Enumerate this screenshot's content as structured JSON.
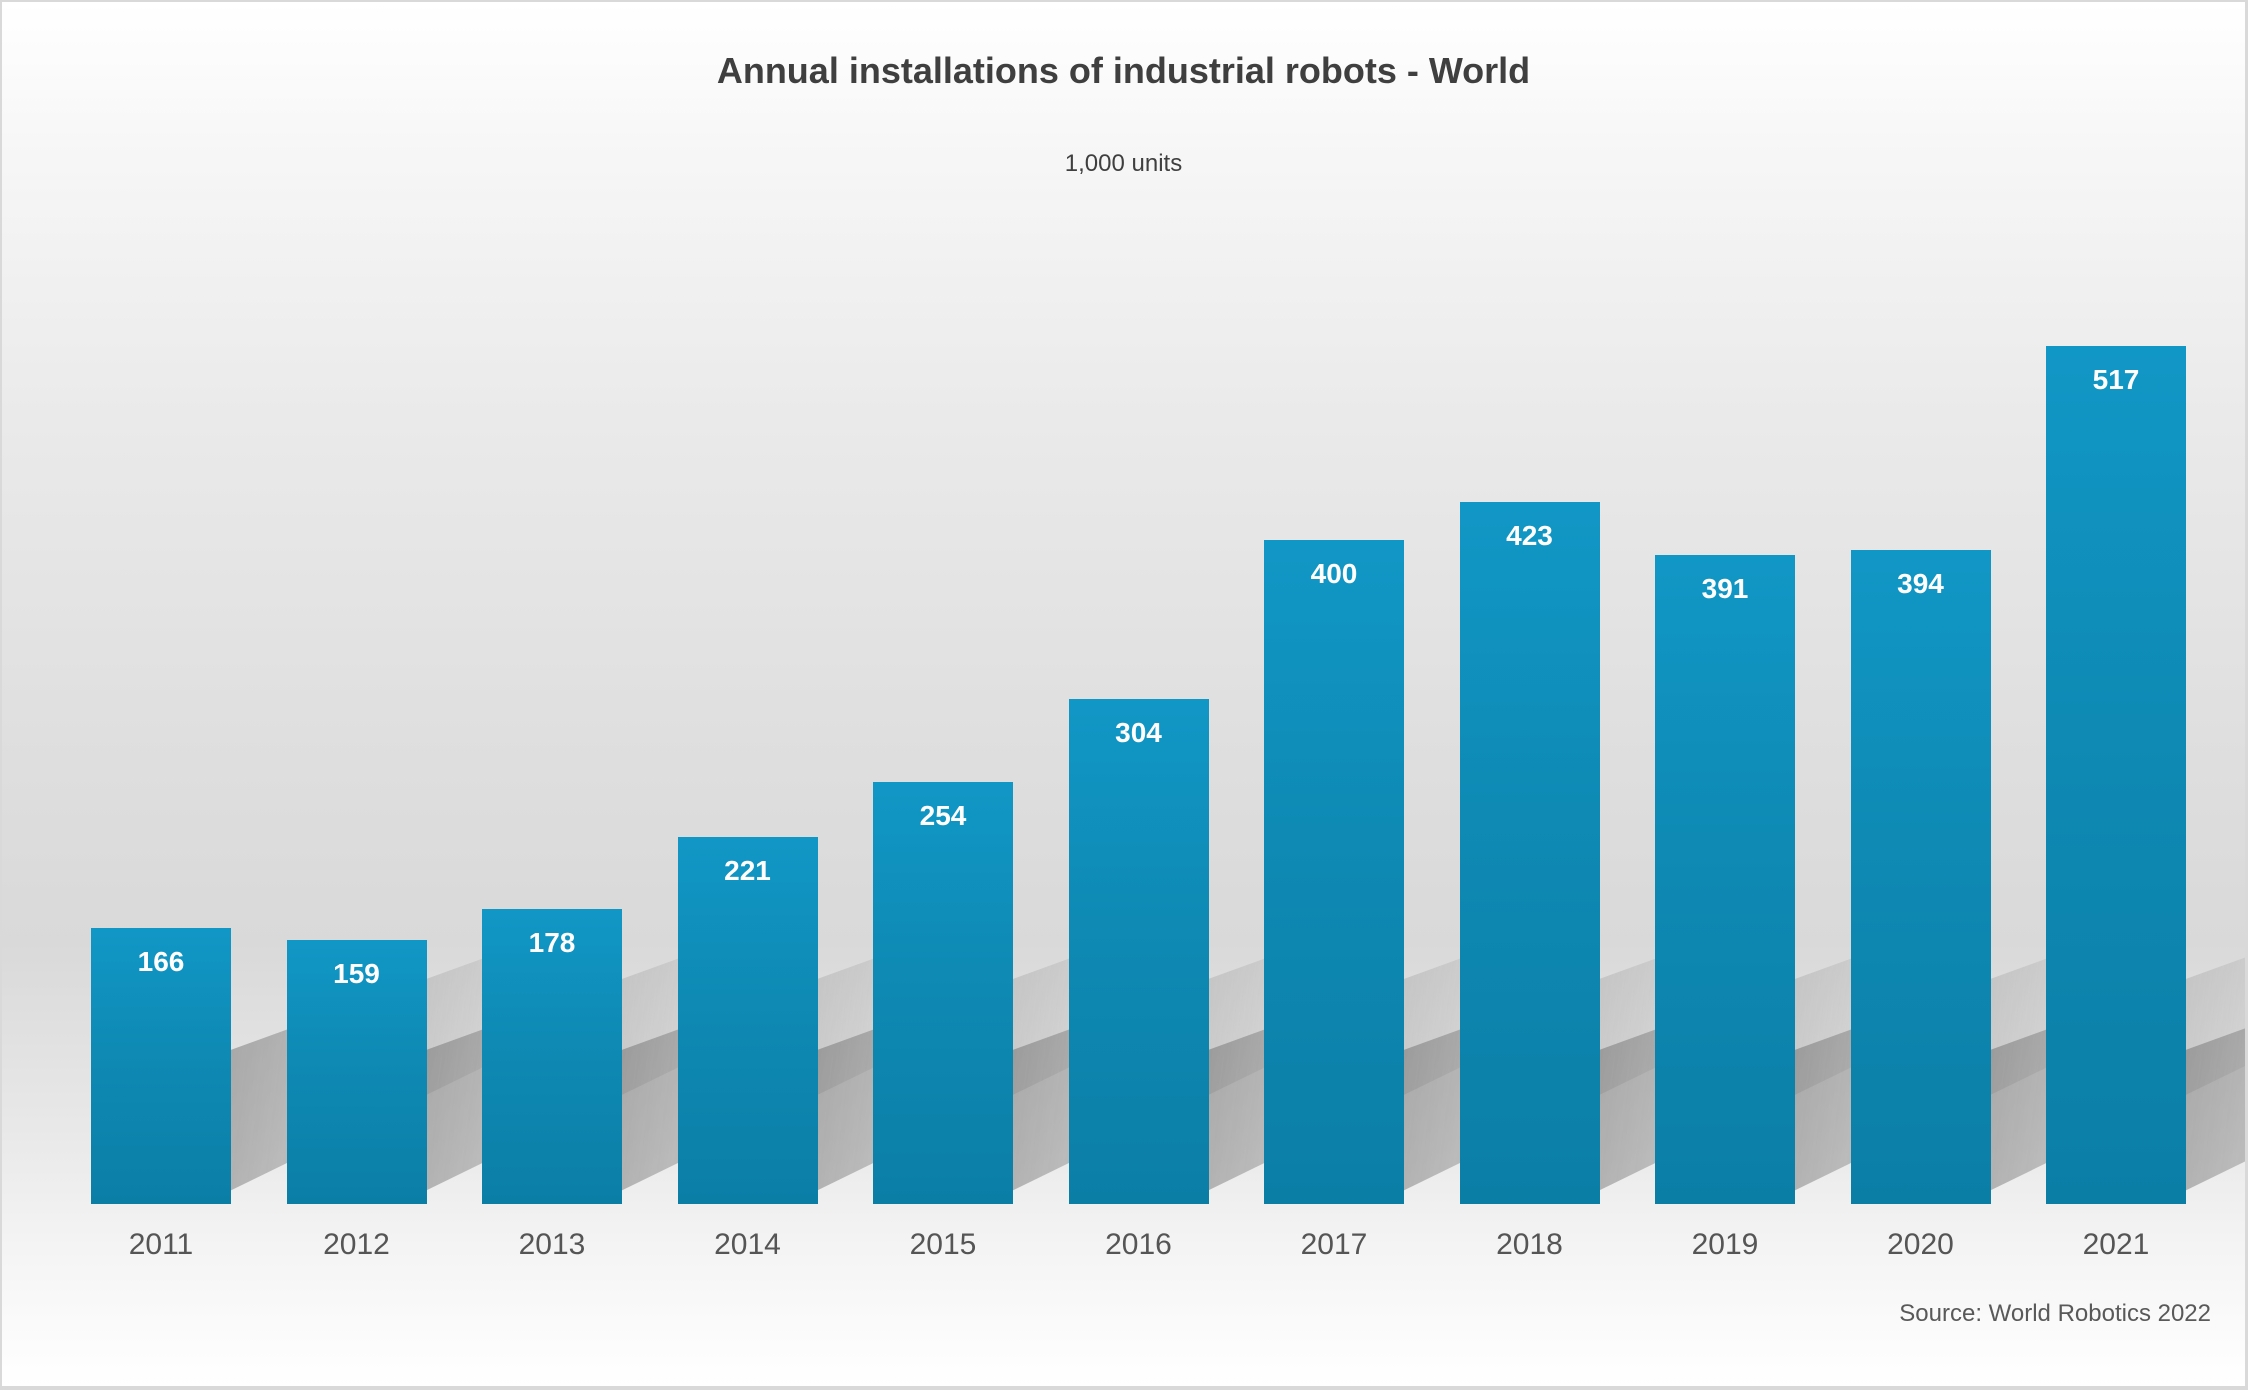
{
  "chart_data": {
    "type": "bar",
    "title": "Annual installations of industrial robots - World",
    "subtitle": "1,000 units",
    "categories": [
      "2011",
      "2012",
      "2013",
      "2014",
      "2015",
      "2016",
      "2017",
      "2018",
      "2019",
      "2020",
      "2021"
    ],
    "values": [
      166,
      159,
      178,
      221,
      254,
      304,
      400,
      423,
      391,
      394,
      517
    ],
    "xlabel": "",
    "ylabel": "1,000 units",
    "ylim": [
      0,
      520
    ],
    "grid": false,
    "legend": false,
    "value_labels_position": "inside-top",
    "source": "Source: World Robotics 2022",
    "colors": {
      "bar_top": "#1197c6",
      "bar_bottom": "#0b7ea6",
      "value_label": "#ffffff",
      "axis_label": "#555555",
      "title": "#3f3f3f",
      "background_mid": "#d9d9d9"
    }
  }
}
